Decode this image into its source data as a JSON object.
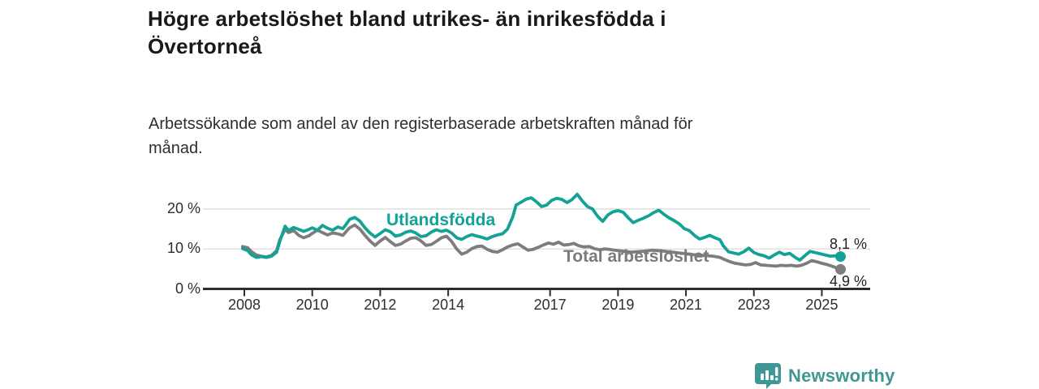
{
  "header": {
    "title_lines": [
      "Högre arbetslöshet bland utrikes- än inrikesfödda i",
      "Övertorneå"
    ],
    "subtitle_lines": [
      "Arbetssökande som andel av den registerbaserade arbetskraften månad för",
      "månad."
    ]
  },
  "branding": {
    "logo_text": "Newsworthy",
    "logo_color": "#3f9795",
    "logo_icon": "bar-chart-speech-bubble"
  },
  "chart_data": {
    "type": "line",
    "title": "Högre arbetslöshet bland utrikes- än inrikesfödda i Övertorneå",
    "subtitle": "Arbetssökande som andel av den registerbaserade arbetskraften månad för månad.",
    "xlabel": "",
    "ylabel": "%",
    "ylim": [
      0,
      25
    ],
    "xlim_years": [
      2006.8,
      2026.4
    ],
    "grid": "horizontal",
    "legend_position": "inline-labels",
    "y_ticks": [
      {
        "value": 0,
        "label": "0 %"
      },
      {
        "value": 10,
        "label": "10 %"
      },
      {
        "value": 20,
        "label": "20 %"
      }
    ],
    "x_ticks": [
      {
        "year": 2008,
        "label": "2008"
      },
      {
        "year": 2010,
        "label": "2010"
      },
      {
        "year": 2012,
        "label": "2012"
      },
      {
        "year": 2014,
        "label": "2014"
      },
      {
        "year": 2017,
        "label": "2017"
      },
      {
        "year": 2019,
        "label": "2019"
      },
      {
        "year": 2021,
        "label": "2021"
      },
      {
        "year": 2023,
        "label": "2023"
      },
      {
        "year": 2025,
        "label": "2025"
      }
    ],
    "series": [
      {
        "name": "Utlandsfödda",
        "color": "#12a296",
        "end_label": "8,1 %",
        "end_value": 8.1,
        "points": [
          [
            2007.95,
            10.1
          ],
          [
            2008.1,
            9.6
          ],
          [
            2008.2,
            8.6
          ],
          [
            2008.35,
            7.9
          ],
          [
            2008.5,
            8.1
          ],
          [
            2008.65,
            7.9
          ],
          [
            2008.8,
            8.2
          ],
          [
            2008.95,
            9.2
          ],
          [
            2009.05,
            12.0
          ],
          [
            2009.2,
            15.7
          ],
          [
            2009.3,
            14.6
          ],
          [
            2009.45,
            15.4
          ],
          [
            2009.6,
            14.9
          ],
          [
            2009.75,
            14.4
          ],
          [
            2009.9,
            14.9
          ],
          [
            2010.0,
            15.3
          ],
          [
            2010.15,
            14.7
          ],
          [
            2010.3,
            15.9
          ],
          [
            2010.45,
            15.2
          ],
          [
            2010.6,
            14.7
          ],
          [
            2010.75,
            15.5
          ],
          [
            2010.9,
            15.1
          ],
          [
            2011.0,
            16.2
          ],
          [
            2011.1,
            17.4
          ],
          [
            2011.25,
            17.9
          ],
          [
            2011.4,
            17.0
          ],
          [
            2011.55,
            15.3
          ],
          [
            2011.7,
            14.0
          ],
          [
            2011.85,
            13.0
          ],
          [
            2012.0,
            13.9
          ],
          [
            2012.15,
            14.8
          ],
          [
            2012.3,
            14.3
          ],
          [
            2012.45,
            13.2
          ],
          [
            2012.6,
            13.5
          ],
          [
            2012.75,
            14.2
          ],
          [
            2012.9,
            14.5
          ],
          [
            2013.05,
            14.0
          ],
          [
            2013.2,
            13.1
          ],
          [
            2013.35,
            13.3
          ],
          [
            2013.5,
            14.2
          ],
          [
            2013.65,
            14.8
          ],
          [
            2013.8,
            14.4
          ],
          [
            2013.95,
            14.7
          ],
          [
            2014.1,
            14.0
          ],
          [
            2014.25,
            12.8
          ],
          [
            2014.4,
            12.4
          ],
          [
            2014.55,
            13.1
          ],
          [
            2014.7,
            13.6
          ],
          [
            2014.85,
            13.2
          ],
          [
            2015.0,
            12.9
          ],
          [
            2015.15,
            12.5
          ],
          [
            2015.3,
            13.1
          ],
          [
            2015.45,
            13.5
          ],
          [
            2015.6,
            13.8
          ],
          [
            2015.75,
            15.0
          ],
          [
            2015.9,
            18.0
          ],
          [
            2016.0,
            21.0
          ],
          [
            2016.15,
            21.7
          ],
          [
            2016.3,
            22.5
          ],
          [
            2016.45,
            22.8
          ],
          [
            2016.6,
            21.8
          ],
          [
            2016.75,
            20.6
          ],
          [
            2016.9,
            21.0
          ],
          [
            2017.05,
            22.2
          ],
          [
            2017.2,
            22.7
          ],
          [
            2017.35,
            22.4
          ],
          [
            2017.5,
            21.6
          ],
          [
            2017.65,
            22.4
          ],
          [
            2017.8,
            23.7
          ],
          [
            2017.95,
            22.0
          ],
          [
            2018.1,
            20.6
          ],
          [
            2018.25,
            20.0
          ],
          [
            2018.4,
            18.2
          ],
          [
            2018.55,
            16.9
          ],
          [
            2018.7,
            18.5
          ],
          [
            2018.85,
            19.3
          ],
          [
            2019.0,
            19.6
          ],
          [
            2019.15,
            19.2
          ],
          [
            2019.3,
            17.8
          ],
          [
            2019.45,
            16.6
          ],
          [
            2019.6,
            17.2
          ],
          [
            2019.75,
            17.7
          ],
          [
            2019.9,
            18.3
          ],
          [
            2020.05,
            19.1
          ],
          [
            2020.2,
            19.7
          ],
          [
            2020.35,
            18.7
          ],
          [
            2020.5,
            17.8
          ],
          [
            2020.65,
            17.1
          ],
          [
            2020.8,
            16.3
          ],
          [
            2020.95,
            15.1
          ],
          [
            2021.1,
            14.6
          ],
          [
            2021.25,
            13.4
          ],
          [
            2021.4,
            12.5
          ],
          [
            2021.55,
            12.9
          ],
          [
            2021.7,
            13.4
          ],
          [
            2021.85,
            12.8
          ],
          [
            2022.0,
            12.3
          ],
          [
            2022.1,
            10.8
          ],
          [
            2022.25,
            9.3
          ],
          [
            2022.4,
            9.0
          ],
          [
            2022.55,
            8.7
          ],
          [
            2022.7,
            9.3
          ],
          [
            2022.85,
            10.2
          ],
          [
            2023.0,
            9.1
          ],
          [
            2023.15,
            8.6
          ],
          [
            2023.3,
            8.3
          ],
          [
            2023.45,
            7.7
          ],
          [
            2023.6,
            8.5
          ],
          [
            2023.75,
            9.2
          ],
          [
            2023.9,
            8.6
          ],
          [
            2024.05,
            8.9
          ],
          [
            2024.2,
            8.0
          ],
          [
            2024.35,
            7.2
          ],
          [
            2024.5,
            8.3
          ],
          [
            2024.65,
            9.4
          ],
          [
            2024.8,
            9.1
          ],
          [
            2024.95,
            8.8
          ],
          [
            2025.1,
            8.5
          ],
          [
            2025.25,
            8.2
          ],
          [
            2025.4,
            8.3
          ],
          [
            2025.55,
            8.1
          ]
        ]
      },
      {
        "name": "Total arbetslöshet",
        "color": "#7d7d7d",
        "label_color": "#7a7a7a",
        "end_label": "4,9 %",
        "end_value": 4.9,
        "points": [
          [
            2007.95,
            10.6
          ],
          [
            2008.1,
            10.3
          ],
          [
            2008.2,
            9.4
          ],
          [
            2008.35,
            8.5
          ],
          [
            2008.5,
            8.2
          ],
          [
            2008.65,
            8.0
          ],
          [
            2008.8,
            8.4
          ],
          [
            2008.95,
            9.6
          ],
          [
            2009.05,
            12.4
          ],
          [
            2009.2,
            14.9
          ],
          [
            2009.3,
            14.1
          ],
          [
            2009.45,
            14.6
          ],
          [
            2009.6,
            13.4
          ],
          [
            2009.75,
            12.8
          ],
          [
            2009.9,
            13.3
          ],
          [
            2010.0,
            13.9
          ],
          [
            2010.15,
            14.7
          ],
          [
            2010.3,
            14.1
          ],
          [
            2010.45,
            13.5
          ],
          [
            2010.6,
            14.0
          ],
          [
            2010.75,
            13.8
          ],
          [
            2010.9,
            13.4
          ],
          [
            2011.0,
            14.4
          ],
          [
            2011.1,
            15.3
          ],
          [
            2011.25,
            16.0
          ],
          [
            2011.4,
            15.0
          ],
          [
            2011.55,
            13.4
          ],
          [
            2011.7,
            12.0
          ],
          [
            2011.85,
            10.9
          ],
          [
            2012.0,
            12.0
          ],
          [
            2012.15,
            12.9
          ],
          [
            2012.3,
            11.8
          ],
          [
            2012.45,
            10.9
          ],
          [
            2012.6,
            11.2
          ],
          [
            2012.75,
            12.0
          ],
          [
            2012.9,
            12.7
          ],
          [
            2013.05,
            12.8
          ],
          [
            2013.2,
            12.0
          ],
          [
            2013.35,
            10.9
          ],
          [
            2013.5,
            11.1
          ],
          [
            2013.65,
            11.9
          ],
          [
            2013.8,
            12.8
          ],
          [
            2013.95,
            13.2
          ],
          [
            2014.1,
            11.9
          ],
          [
            2014.25,
            10.0
          ],
          [
            2014.4,
            8.7
          ],
          [
            2014.55,
            9.2
          ],
          [
            2014.7,
            10.1
          ],
          [
            2014.85,
            10.6
          ],
          [
            2015.0,
            10.7
          ],
          [
            2015.15,
            9.9
          ],
          [
            2015.3,
            9.4
          ],
          [
            2015.45,
            9.2
          ],
          [
            2015.6,
            9.8
          ],
          [
            2015.75,
            10.5
          ],
          [
            2015.9,
            11.0
          ],
          [
            2016.05,
            11.3
          ],
          [
            2016.2,
            10.5
          ],
          [
            2016.35,
            9.7
          ],
          [
            2016.5,
            9.9
          ],
          [
            2016.65,
            10.4
          ],
          [
            2016.8,
            11.0
          ],
          [
            2016.95,
            11.5
          ],
          [
            2017.1,
            11.2
          ],
          [
            2017.25,
            11.7
          ],
          [
            2017.4,
            11.0
          ],
          [
            2017.55,
            11.1
          ],
          [
            2017.7,
            11.4
          ],
          [
            2017.85,
            10.8
          ],
          [
            2018.0,
            10.5
          ],
          [
            2018.15,
            10.6
          ],
          [
            2018.3,
            10.1
          ],
          [
            2018.45,
            9.8
          ],
          [
            2018.6,
            10.0
          ],
          [
            2018.75,
            9.9
          ],
          [
            2018.9,
            9.7
          ],
          [
            2019.1,
            9.5
          ],
          [
            2019.4,
            9.2
          ],
          [
            2019.7,
            9.4
          ],
          [
            2020.0,
            9.7
          ],
          [
            2020.3,
            9.5
          ],
          [
            2020.6,
            9.2
          ],
          [
            2020.9,
            8.9
          ],
          [
            2021.2,
            8.6
          ],
          [
            2021.5,
            8.4
          ],
          [
            2021.8,
            8.2
          ],
          [
            2022.0,
            7.9
          ],
          [
            2022.15,
            7.3
          ],
          [
            2022.3,
            6.8
          ],
          [
            2022.45,
            6.4
          ],
          [
            2022.6,
            6.2
          ],
          [
            2022.75,
            6.0
          ],
          [
            2022.9,
            6.1
          ],
          [
            2023.05,
            6.6
          ],
          [
            2023.2,
            6.0
          ],
          [
            2023.35,
            5.9
          ],
          [
            2023.5,
            5.8
          ],
          [
            2023.65,
            5.7
          ],
          [
            2023.8,
            5.9
          ],
          [
            2023.95,
            5.8
          ],
          [
            2024.1,
            5.9
          ],
          [
            2024.25,
            5.7
          ],
          [
            2024.4,
            5.9
          ],
          [
            2024.55,
            6.4
          ],
          [
            2024.7,
            7.1
          ],
          [
            2024.85,
            6.8
          ],
          [
            2025.0,
            6.4
          ],
          [
            2025.15,
            6.1
          ],
          [
            2025.3,
            5.7
          ],
          [
            2025.45,
            5.2
          ],
          [
            2025.55,
            4.9
          ]
        ]
      }
    ]
  }
}
